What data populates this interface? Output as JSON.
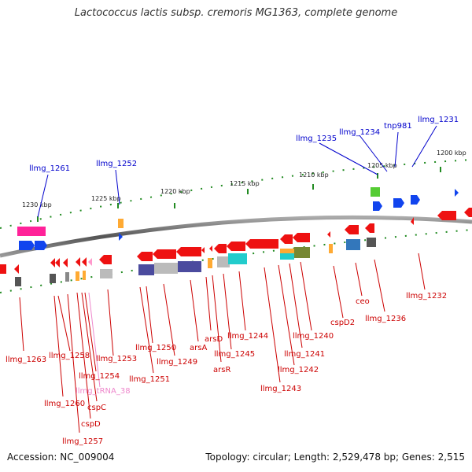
{
  "title": "Lactococcus lactis subsp. cremoris MG1363, complete genome",
  "footer": {
    "accession": "Accession: NC_009004",
    "summary": "Topology: circular; Length: 2,529,478 bp; Genes: 2,515"
  },
  "scale_labels": [
    "1230 kbp",
    "1225 kbp",
    "1220 kbp",
    "1215 kbp",
    "1210 kbp",
    "1205 kbp",
    "1200 kbp"
  ],
  "forward_labels": [
    "llmg_1261",
    "llmg_1252",
    "llmg_1235",
    "llmg_1234",
    "tnp981",
    "llmg_1231"
  ],
  "reverse_labels": [
    "llmg_1263",
    "llmg_1258",
    "llmg_1260",
    "llmg_1257",
    "cspD",
    "cspC",
    "llmg_1254",
    "llmg_tRNA_38",
    "llmg_1253",
    "llmg_1250",
    "llmg_1251",
    "llmg_1249",
    "arsA",
    "arsD",
    "arsR",
    "llmg_1245",
    "llmg_1244",
    "llmg_1242",
    "llmg_1243",
    "llmg_1241",
    "llmg_1240",
    "cspD2",
    "ceo",
    "llmg_1236",
    "llmg_1232"
  ],
  "colors": {
    "forward_label": "#0000cc",
    "reverse_label": "#cc0000",
    "trna_label": "#ee88cc",
    "backbone": "#777777",
    "scale_ticks": "#228b22"
  }
}
